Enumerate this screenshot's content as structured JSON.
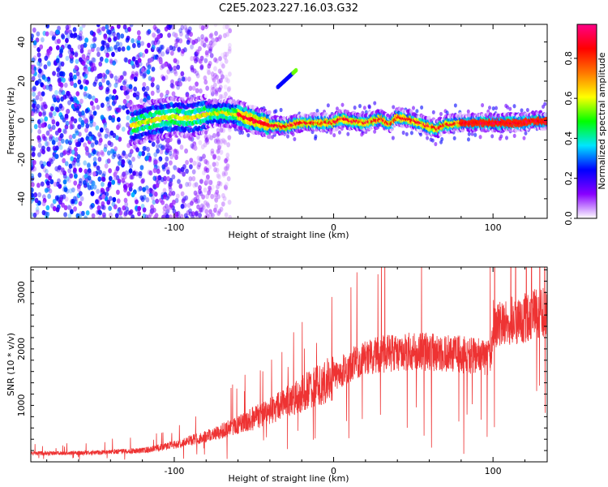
{
  "title": "C2E5.2023.227.16.03.G32",
  "chart_data": [
    {
      "type": "heatmap",
      "xlabel": "Height of straight line (km)",
      "ylabel": "Frequency (Hz)",
      "xlim": [
        -190,
        134
      ],
      "ylim": [
        -50,
        49
      ],
      "x_ticks": [
        -100,
        0,
        100
      ],
      "y_ticks": [
        -40,
        -20,
        0,
        20,
        40
      ],
      "colorbar": {
        "label": "Normalized spectral amplitude",
        "range": [
          0.0,
          0.97
        ],
        "ticks": [
          0.0,
          0.2,
          0.4,
          0.6,
          0.8
        ],
        "colormap": [
          "#ffffff",
          "#8800ff",
          "#0000ff",
          "#00e5ff",
          "#00ff00",
          "#ffff00",
          "#ff7700",
          "#ff0000",
          "#ff0088"
        ]
      },
      "ridge": {
        "x": [
          -127,
          -115,
          -100,
          -90,
          -80,
          -70,
          -60,
          -50,
          -40,
          -30,
          -20,
          -10,
          0,
          5,
          10,
          20,
          30,
          35,
          40,
          50,
          60,
          65,
          70,
          80,
          90,
          100,
          110,
          118,
          125,
          134
        ],
        "y": [
          -3,
          0,
          2,
          1,
          3,
          4,
          3,
          0,
          -2,
          -3,
          -1,
          -1,
          -1,
          1,
          0,
          -1,
          1,
          -2,
          2,
          0,
          -3,
          -4,
          -2,
          -1,
          -1,
          -1,
          -1,
          -1,
          0,
          0
        ]
      },
      "feature_segment": {
        "x": [
          -35,
          -23
        ],
        "y": [
          17,
          26
        ]
      }
    },
    {
      "type": "line",
      "xlabel": "Height of straight line (km)",
      "ylabel": "SNR (10 * v/v)",
      "xlim": [
        -190,
        134
      ],
      "ylim": [
        0,
        3450
      ],
      "x_ticks": [
        -100,
        0,
        100
      ],
      "y_ticks": [
        1000,
        2000,
        3000
      ],
      "color": "#ee3333",
      "trend": {
        "x": [
          -190,
          -150,
          -120,
          -100,
          -80,
          -60,
          -40,
          -20,
          -10,
          0,
          10,
          20,
          40,
          60,
          80,
          95,
          99,
          100,
          110,
          120,
          134
        ],
        "y": [
          150,
          160,
          200,
          300,
          450,
          650,
          900,
          1200,
          1350,
          1500,
          1700,
          1850,
          1950,
          1950,
          1900,
          1850,
          1850,
          2450,
          2500,
          2550,
          2700
        ]
      }
    }
  ]
}
